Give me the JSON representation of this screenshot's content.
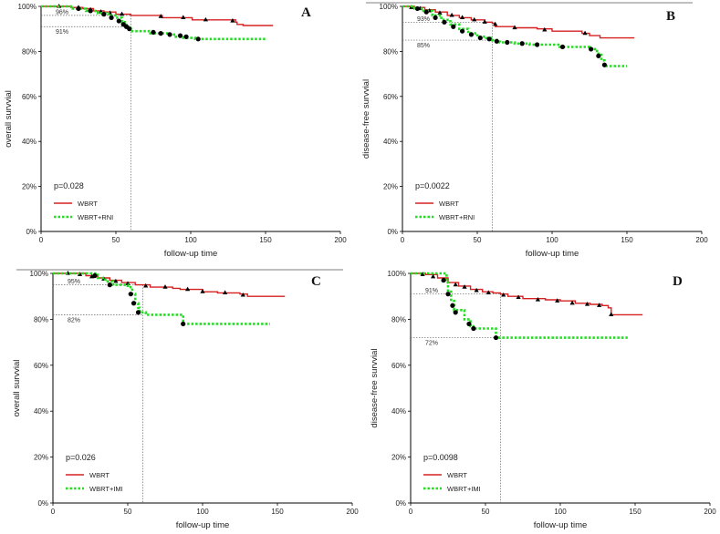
{
  "chart_data": [
    {
      "type": "line",
      "panel": "A",
      "ylabel": "overall survvial",
      "xlabel": "follow-up time",
      "xlim": [
        0,
        200
      ],
      "ylim": [
        0,
        100
      ],
      "xticks": [
        "0",
        "50",
        "100",
        "150",
        "200"
      ],
      "yticks": [
        "0%",
        "20%",
        "40%",
        "60%",
        "80%",
        "100%"
      ],
      "p_value": "p=0.028",
      "legend": [
        "WBRT",
        "WBRT+RNI"
      ],
      "cutoff_x": 60,
      "ref_lines": [
        {
          "y": 96,
          "label": "96%"
        },
        {
          "y": 91,
          "label": "91%"
        }
      ],
      "series": [
        {
          "name": "WBRT",
          "color": "#d62020",
          "dashed": false,
          "steps": [
            [
              0,
              100
            ],
            [
              10,
              100
            ],
            [
              20,
              99.5
            ],
            [
              28,
              99
            ],
            [
              35,
              98
            ],
            [
              42,
              97.5
            ],
            [
              50,
              96.5
            ],
            [
              60,
              96
            ],
            [
              80,
              96
            ],
            [
              81,
              95
            ],
            [
              100,
              95
            ],
            [
              101,
              94
            ],
            [
              128,
              94
            ],
            [
              130,
              93
            ],
            [
              131,
              92
            ],
            [
              135,
              91.5
            ],
            [
              155,
              91.5
            ]
          ],
          "censor": [
            [
              12,
              100
            ],
            [
              25,
              99.5
            ],
            [
              33,
              98.5
            ],
            [
              40,
              97.5
            ],
            [
              46,
              97
            ],
            [
              54,
              96.5
            ],
            [
              80,
              95.5
            ],
            [
              95,
              95
            ],
            [
              110,
              94
            ],
            [
              128,
              93.5
            ]
          ],
          "censor_shape": "triangle"
        },
        {
          "name": "WBRT+RNI",
          "color": "#22dd22",
          "dashed": true,
          "steps": [
            [
              0,
              100
            ],
            [
              10,
              100
            ],
            [
              20,
              99
            ],
            [
              30,
              98
            ],
            [
              38,
              97
            ],
            [
              45,
              96
            ],
            [
              50,
              95
            ],
            [
              54,
              93
            ],
            [
              57,
              91
            ],
            [
              60,
              90
            ],
            [
              61,
              89
            ],
            [
              70,
              89
            ],
            [
              73,
              88
            ],
            [
              85,
              87.5
            ],
            [
              90,
              86.5
            ],
            [
              95,
              86
            ],
            [
              100,
              86
            ],
            [
              103,
              85.5
            ],
            [
              150,
              85.5
            ]
          ],
          "censor": [
            [
              25,
              99
            ],
            [
              33,
              98
            ],
            [
              42,
              96.5
            ],
            [
              47,
              95
            ],
            [
              52,
              93.5
            ],
            [
              55,
              92
            ],
            [
              57,
              91
            ],
            [
              59,
              90
            ],
            [
              75,
              88.5
            ],
            [
              80,
              88
            ],
            [
              86,
              87.5
            ],
            [
              93,
              87
            ],
            [
              97,
              86.5
            ],
            [
              105,
              85.5
            ]
          ],
          "censor_shape": "dot"
        }
      ]
    },
    {
      "type": "line",
      "panel": "B",
      "ylabel": "disease-free survvial",
      "xlabel": "follow-up time",
      "xlim": [
        0,
        200
      ],
      "ylim": [
        0,
        100
      ],
      "xticks": [
        "0",
        "50",
        "100",
        "150",
        "200"
      ],
      "yticks": [
        "0%",
        "20%",
        "40%",
        "60%",
        "80%",
        "100%"
      ],
      "p_value": "p=0.0022",
      "legend": [
        "WBRT",
        "WBRT+RNI"
      ],
      "cutoff_x": 60,
      "ref_lines": [
        {
          "y": 93,
          "label": "93%"
        },
        {
          "y": 85,
          "label": "85%"
        }
      ],
      "series": [
        {
          "name": "WBRT",
          "color": "#d62020",
          "dashed": false,
          "steps": [
            [
              0,
              100
            ],
            [
              8,
              99.5
            ],
            [
              15,
              98.5
            ],
            [
              22,
              97.5
            ],
            [
              30,
              96
            ],
            [
              38,
              95
            ],
            [
              46,
              94
            ],
            [
              55,
              93
            ],
            [
              60,
              92.5
            ],
            [
              62,
              91
            ],
            [
              75,
              90.5
            ],
            [
              90,
              90
            ],
            [
              100,
              89
            ],
            [
              120,
              88
            ],
            [
              125,
              87
            ],
            [
              130,
              87
            ],
            [
              132,
              86
            ],
            [
              155,
              86
            ]
          ],
          "censor": [
            [
              6,
              99.5
            ],
            [
              12,
              99
            ],
            [
              18,
              98
            ],
            [
              25,
              97
            ],
            [
              33,
              96
            ],
            [
              40,
              95
            ],
            [
              48,
              94
            ],
            [
              55,
              93
            ],
            [
              62,
              92
            ],
            [
              75,
              90.5
            ],
            [
              95,
              89.5
            ],
            [
              122,
              88
            ]
          ],
          "censor_shape": "triangle"
        },
        {
          "name": "WBRT+RNI",
          "color": "#22dd22",
          "dashed": true,
          "steps": [
            [
              0,
              100
            ],
            [
              8,
              99
            ],
            [
              14,
              98
            ],
            [
              20,
              96
            ],
            [
              26,
              94
            ],
            [
              32,
              92
            ],
            [
              38,
              90
            ],
            [
              44,
              88
            ],
            [
              50,
              86.5
            ],
            [
              56,
              86
            ],
            [
              60,
              85
            ],
            [
              65,
              84
            ],
            [
              75,
              83.5
            ],
            [
              85,
              83
            ],
            [
              100,
              83
            ],
            [
              105,
              82
            ],
            [
              120,
              82
            ],
            [
              125,
              81
            ],
            [
              130,
              79
            ],
            [
              133,
              76
            ],
            [
              135,
              73.5
            ],
            [
              150,
              73.5
            ]
          ],
          "censor": [
            [
              10,
              99
            ],
            [
              16,
              97.5
            ],
            [
              22,
              95
            ],
            [
              28,
              93
            ],
            [
              34,
              91
            ],
            [
              40,
              89
            ],
            [
              46,
              87.5
            ],
            [
              52,
              86
            ],
            [
              58,
              85.5
            ],
            [
              63,
              84.5
            ],
            [
              70,
              84
            ],
            [
              80,
              83.5
            ],
            [
              90,
              83
            ],
            [
              107,
              82
            ],
            [
              126,
              81
            ],
            [
              131,
              78
            ],
            [
              135,
              74
            ]
          ],
          "censor_shape": "dot"
        }
      ]
    },
    {
      "type": "line",
      "panel": "C",
      "ylabel": "overall survvial",
      "xlabel": "follow-up time",
      "xlim": [
        0,
        200
      ],
      "ylim": [
        0,
        100
      ],
      "xticks": [
        "0",
        "50",
        "100",
        "150",
        "200"
      ],
      "yticks": [
        "0%",
        "20%",
        "40%",
        "60%",
        "80%",
        "100%"
      ],
      "p_value": "p=0.026",
      "legend": [
        "WBRT",
        "WBRT+IMI"
      ],
      "cutoff_x": 60,
      "ref_lines": [
        {
          "y": 95,
          "label": "95%"
        },
        {
          "y": 82,
          "label": "82%"
        }
      ],
      "series": [
        {
          "name": "WBRT",
          "color": "#d62020",
          "dashed": false,
          "steps": [
            [
              0,
              100
            ],
            [
              15,
              100
            ],
            [
              22,
              99
            ],
            [
              30,
              98
            ],
            [
              38,
              97
            ],
            [
              46,
              96
            ],
            [
              55,
              95
            ],
            [
              60,
              95
            ],
            [
              65,
              94
            ],
            [
              80,
              93.5
            ],
            [
              85,
              93
            ],
            [
              100,
              92
            ],
            [
              110,
              91.5
            ],
            [
              125,
              91
            ],
            [
              130,
              90
            ],
            [
              155,
              90
            ]
          ],
          "censor": [
            [
              10,
              100
            ],
            [
              18,
              99.5
            ],
            [
              26,
              98.5
            ],
            [
              34,
              97.5
            ],
            [
              42,
              96.5
            ],
            [
              50,
              95.5
            ],
            [
              62,
              94.5
            ],
            [
              75,
              94
            ],
            [
              90,
              93
            ],
            [
              100,
              92
            ],
            [
              115,
              91.5
            ],
            [
              127,
              90.5
            ]
          ],
          "censor_shape": "triangle"
        },
        {
          "name": "WBRT+IMI",
          "color": "#22dd22",
          "dashed": true,
          "steps": [
            [
              0,
              100
            ],
            [
              25,
              100
            ],
            [
              30,
              98
            ],
            [
              35,
              96.5
            ],
            [
              40,
              95
            ],
            [
              50,
              94
            ],
            [
              53,
              91
            ],
            [
              55,
              87
            ],
            [
              57,
              85
            ],
            [
              58,
              83
            ],
            [
              62,
              82
            ],
            [
              85,
              82
            ],
            [
              87,
              78
            ],
            [
              145,
              78
            ]
          ],
          "censor": [
            [
              28,
              99
            ],
            [
              38,
              95
            ],
            [
              52,
              91
            ],
            [
              54,
              87
            ],
            [
              57,
              83
            ],
            [
              87,
              78
            ]
          ],
          "censor_shape": "dot"
        }
      ]
    },
    {
      "type": "line",
      "panel": "D",
      "ylabel": "disease-free survvial",
      "xlabel": "follow-up time",
      "xlim": [
        0,
        200
      ],
      "ylim": [
        0,
        100
      ],
      "xticks": [
        "0",
        "50",
        "100",
        "150",
        "200"
      ],
      "yticks": [
        "0%",
        "20%",
        "40%",
        "60%",
        "80%",
        "100%"
      ],
      "p_value": "p=0.0098",
      "legend": [
        "WBRT",
        "WBRT+IMI"
      ],
      "cutoff_x": 60,
      "ref_lines": [
        {
          "y": 91,
          "label": "91%"
        },
        {
          "y": 72,
          "label": "72%"
        }
      ],
      "series": [
        {
          "name": "WBRT",
          "color": "#d62020",
          "dashed": false,
          "steps": [
            [
              0,
              100
            ],
            [
              10,
              99.5
            ],
            [
              18,
              98
            ],
            [
              25,
              96
            ],
            [
              32,
              94.5
            ],
            [
              40,
              93
            ],
            [
              48,
              92
            ],
            [
              55,
              91.5
            ],
            [
              60,
              91
            ],
            [
              65,
              90
            ],
            [
              75,
              89
            ],
            [
              90,
              88.5
            ],
            [
              100,
              88
            ],
            [
              110,
              87
            ],
            [
              120,
              86.5
            ],
            [
              128,
              86
            ],
            [
              132,
              85
            ],
            [
              134,
              82
            ],
            [
              155,
              82
            ]
          ],
          "censor": [
            [
              8,
              99.5
            ],
            [
              15,
              98.5
            ],
            [
              22,
              97
            ],
            [
              30,
              95
            ],
            [
              36,
              94
            ],
            [
              44,
              92.5
            ],
            [
              52,
              91.5
            ],
            [
              62,
              90.5
            ],
            [
              72,
              89.5
            ],
            [
              85,
              88.5
            ],
            [
              98,
              88
            ],
            [
              108,
              87
            ],
            [
              118,
              86.5
            ],
            [
              126,
              86
            ],
            [
              134,
              82
            ]
          ],
          "censor_shape": "triangle"
        },
        {
          "name": "WBRT+IMI",
          "color": "#22dd22",
          "dashed": true,
          "steps": [
            [
              0,
              100
            ],
            [
              20,
              100
            ],
            [
              24,
              96
            ],
            [
              25,
              92
            ],
            [
              27,
              88
            ],
            [
              29,
              84
            ],
            [
              36,
              80
            ],
            [
              40,
              77
            ],
            [
              42,
              76
            ],
            [
              55,
              76
            ],
            [
              57,
              72
            ],
            [
              145,
              72
            ]
          ],
          "censor": [
            [
              22,
              97
            ],
            [
              25,
              91
            ],
            [
              28,
              86
            ],
            [
              30,
              83
            ],
            [
              39,
              78
            ],
            [
              42,
              76
            ],
            [
              57,
              72
            ]
          ],
          "censor_shape": "dot"
        }
      ]
    }
  ]
}
